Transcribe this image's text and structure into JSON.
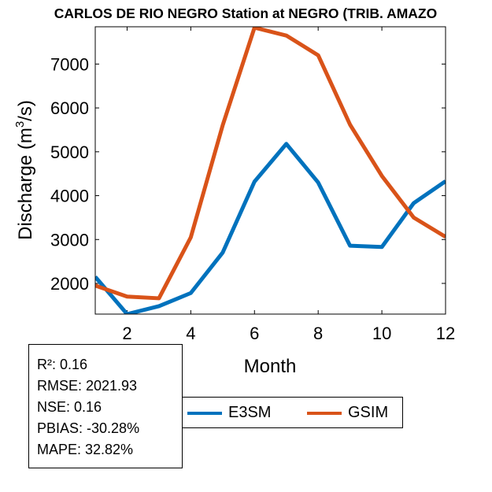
{
  "chart_data": {
    "type": "line",
    "title": "CARLOS DE RIO NEGRO  Station at  NEGRO (TRIB. AMAZO",
    "xlabel": "Month",
    "ylabel_main": "Discharge (m",
    "ylabel_sup": "3",
    "ylabel_end": "/s)",
    "xlim": [
      1,
      12
    ],
    "ylim": [
      1300,
      7850
    ],
    "xticks": [
      2,
      4,
      6,
      8,
      10,
      12
    ],
    "yticks": [
      2000,
      3000,
      4000,
      5000,
      6000,
      7000
    ],
    "x": [
      1,
      2,
      3,
      4,
      5,
      6,
      7,
      8,
      9,
      10,
      11,
      12
    ],
    "series": [
      {
        "name": "E3SM",
        "color": "#0072BD",
        "values": [
          2150,
          1300,
          1480,
          1780,
          2700,
          4320,
          5180,
          4300,
          2860,
          2830,
          3830,
          4330
        ]
      },
      {
        "name": "GSIM",
        "color": "#D95319",
        "values": [
          1950,
          1700,
          1660,
          3050,
          5600,
          7830,
          7650,
          7200,
          5620,
          4450,
          3500,
          3060
        ]
      }
    ]
  },
  "stats": {
    "r2": "R²: 0.16",
    "rmse": "RMSE: 2021.93",
    "nse": "NSE: 0.16",
    "pbias": "PBIAS: -30.28%",
    "mape": "MAPE: 32.82%"
  },
  "legend": {
    "e3sm_label": "E3SM",
    "gsim_label": "GSIM",
    "e3sm_color": "#0072BD",
    "gsim_color": "#D95319"
  }
}
